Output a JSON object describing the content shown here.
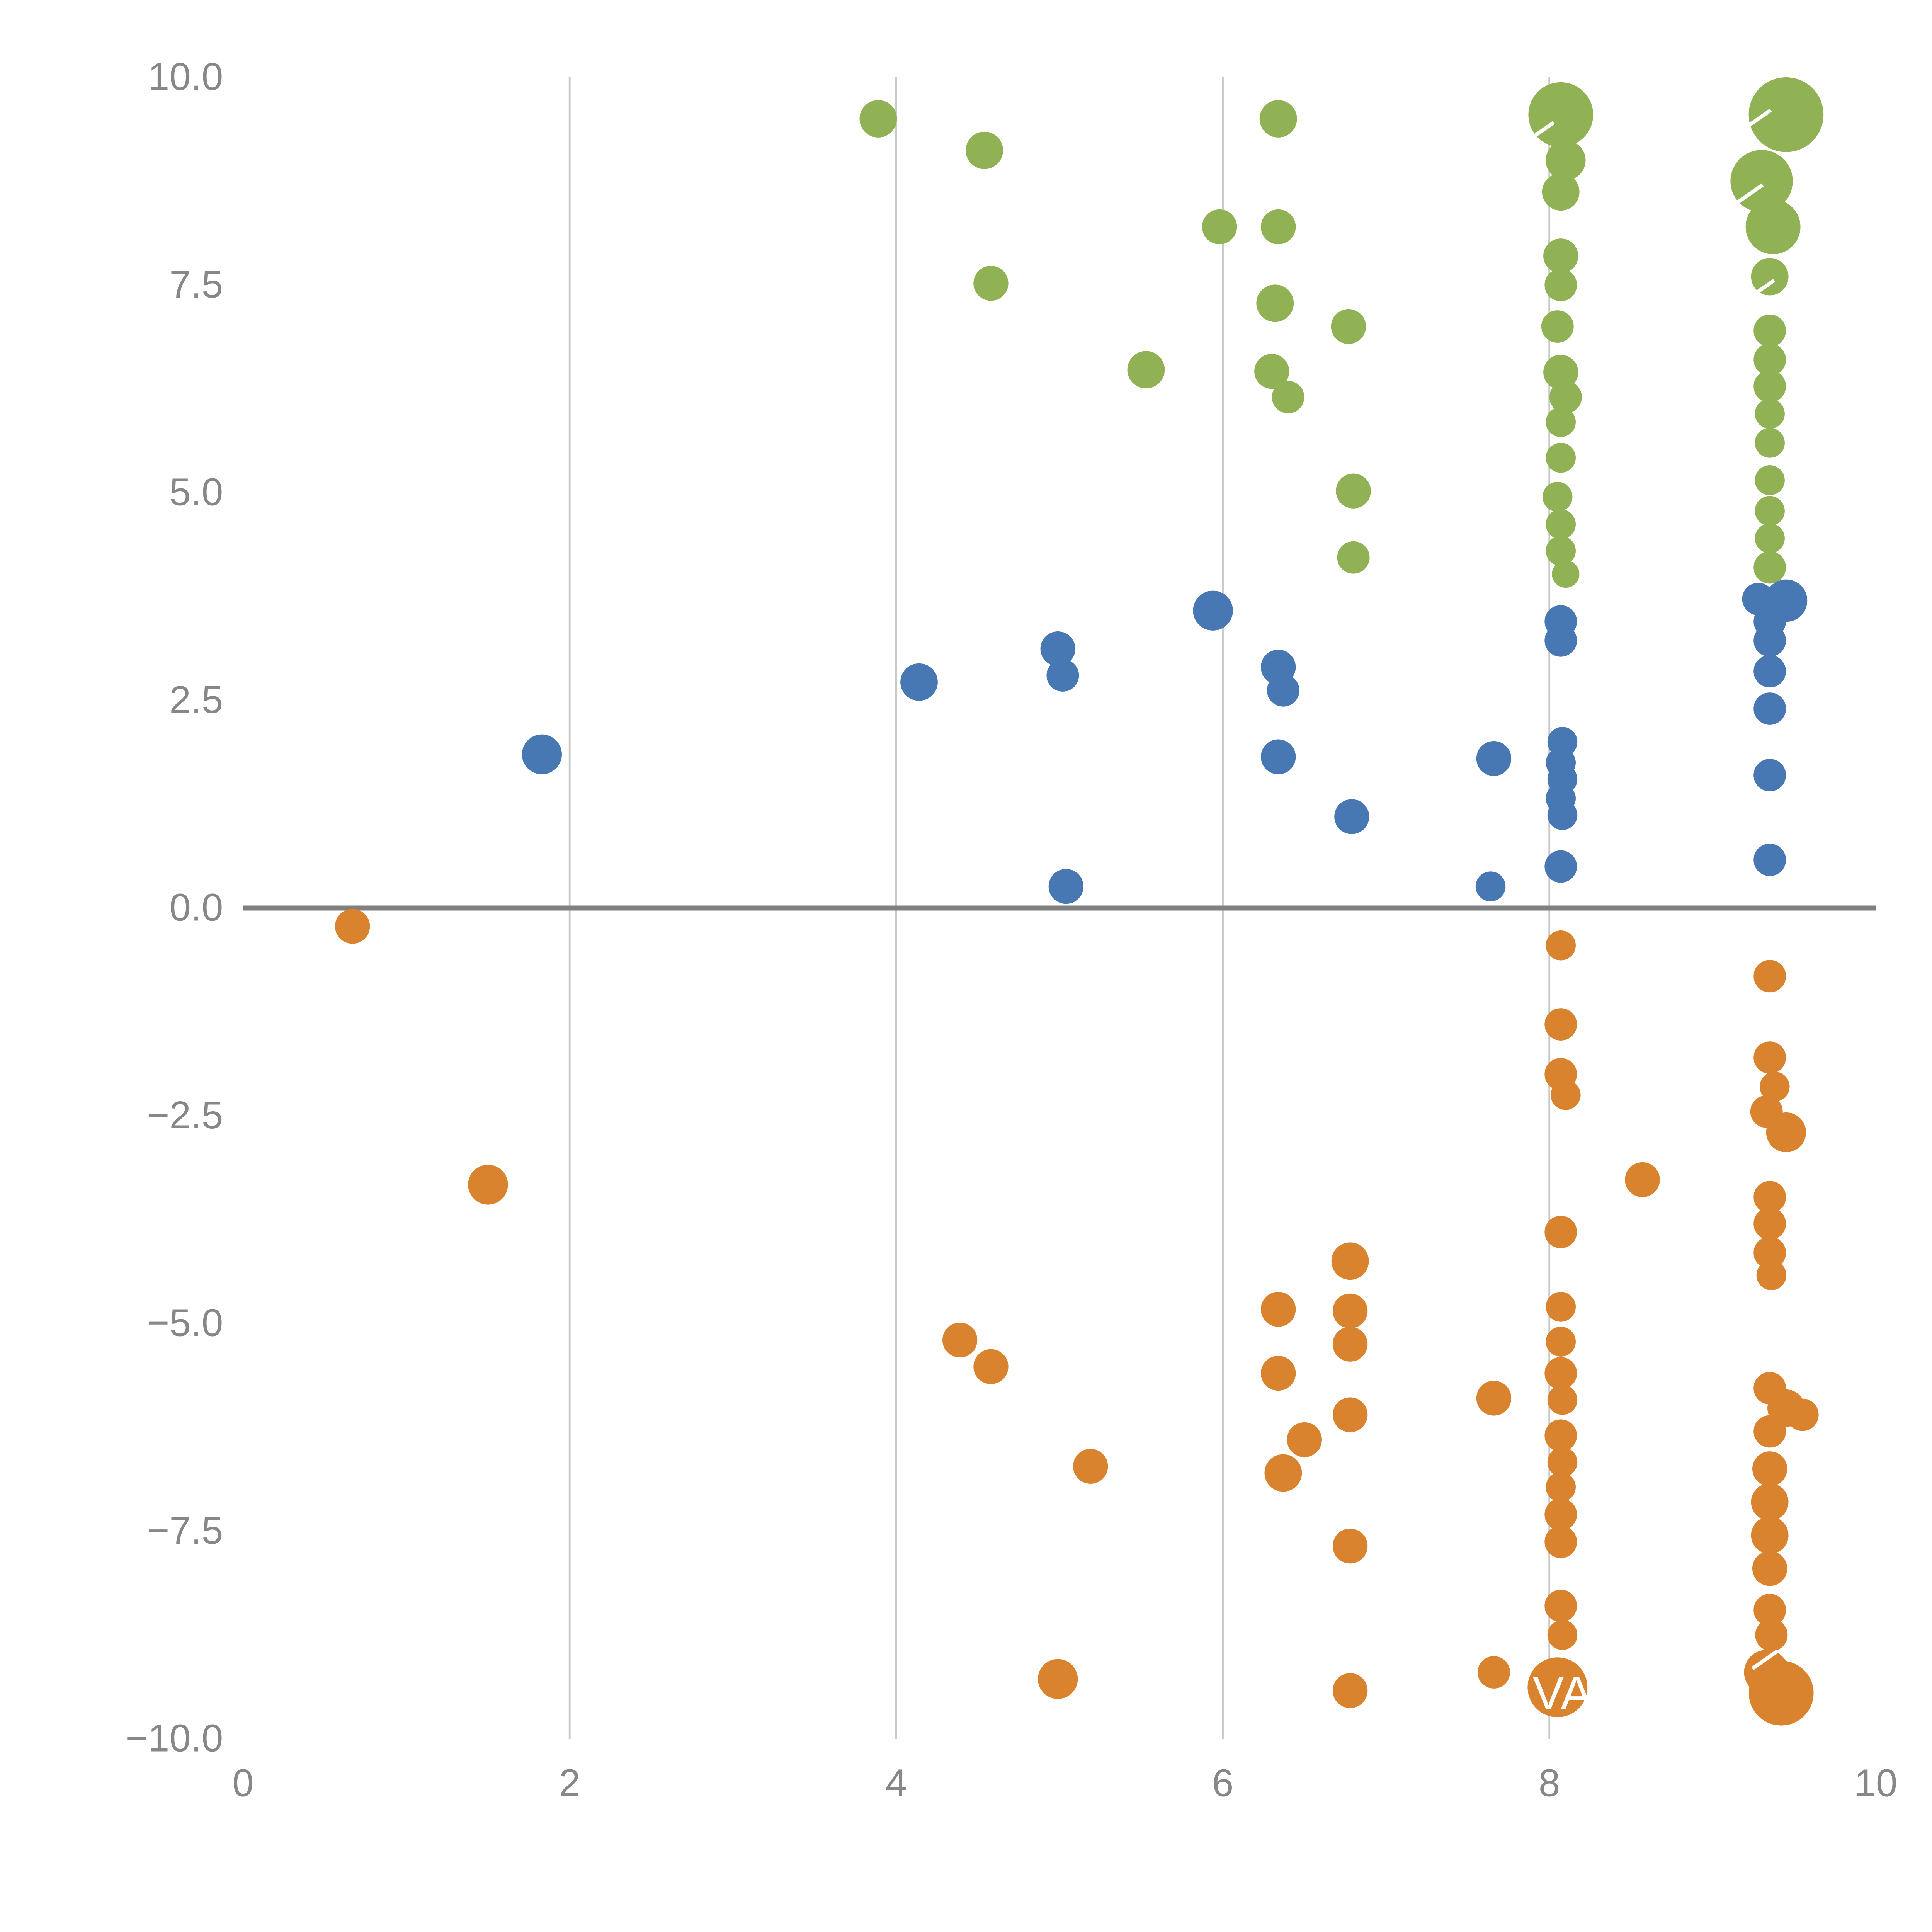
{
  "chart_data": {
    "type": "scatter",
    "title": "",
    "xlabel": "",
    "ylabel": "",
    "xlim": [
      0,
      10
    ],
    "ylim": [
      -10,
      10
    ],
    "grid": {
      "vertical_lines": [
        2,
        4,
        6,
        8
      ],
      "zero_line": true
    },
    "legend": "none",
    "colors": {
      "green": "#90B254",
      "blue": "#4878B4",
      "orange": "#D9832F",
      "grid": "#c9c9c9",
      "zero_line": "#808080",
      "tick_label": "#878787",
      "background": "#ffffff"
    },
    "x_ticks": [
      {
        "value": 0,
        "label": "0"
      },
      {
        "value": 2,
        "label": "2"
      },
      {
        "value": 4,
        "label": "4"
      },
      {
        "value": 6,
        "label": "6"
      },
      {
        "value": 8,
        "label": "8"
      },
      {
        "value": 10,
        "label": "10"
      }
    ],
    "y_ticks": [
      {
        "value": 10,
        "label": "10.0"
      },
      {
        "value": 7.5,
        "label": "7.5"
      },
      {
        "value": 5,
        "label": "5.0"
      },
      {
        "value": 2.5,
        "label": "2.5"
      },
      {
        "value": 0,
        "label": "0.0"
      },
      {
        "value": -2.5,
        "label": "−2.5"
      },
      {
        "value": -5,
        "label": "−5.0"
      },
      {
        "value": -7.5,
        "label": "−7.5"
      },
      {
        "value": -10,
        "label": "−10.0"
      }
    ],
    "point_format": [
      "x",
      "y",
      "r"
    ],
    "series": [
      {
        "name": "green-series",
        "color": "#90B254",
        "points": [
          [
            3.89,
            9.5,
            15
          ],
          [
            4.54,
            9.12,
            15
          ],
          [
            4.58,
            7.52,
            14
          ],
          [
            5.53,
            6.48,
            15
          ],
          [
            5.98,
            8.2,
            14
          ],
          [
            6.34,
            9.5,
            15
          ],
          [
            6.34,
            8.2,
            14
          ],
          [
            6.32,
            7.28,
            15
          ],
          [
            6.3,
            6.46,
            14
          ],
          [
            6.4,
            6.15,
            13
          ],
          [
            6.77,
            7.0,
            14
          ],
          [
            6.8,
            5.02,
            14
          ],
          [
            6.8,
            4.22,
            13
          ],
          [
            8.07,
            9.55,
            26
          ],
          [
            8.1,
            9.0,
            16
          ],
          [
            8.07,
            8.62,
            15
          ],
          [
            8.07,
            7.85,
            14
          ],
          [
            8.07,
            7.5,
            13
          ],
          [
            8.05,
            7.0,
            13
          ],
          [
            8.07,
            6.45,
            14
          ],
          [
            8.1,
            6.15,
            13
          ],
          [
            8.07,
            5.85,
            12
          ],
          [
            8.07,
            5.42,
            12
          ],
          [
            8.05,
            4.95,
            12
          ],
          [
            8.07,
            4.62,
            12
          ],
          [
            8.07,
            4.3,
            12
          ],
          [
            8.1,
            4.02,
            11
          ],
          [
            9.45,
            9.55,
            30
          ],
          [
            9.3,
            8.75,
            25
          ],
          [
            9.37,
            8.2,
            22
          ],
          [
            9.35,
            7.6,
            15
          ],
          [
            9.35,
            6.95,
            13
          ],
          [
            9.35,
            6.6,
            13
          ],
          [
            9.35,
            6.28,
            13
          ],
          [
            9.35,
            5.95,
            12
          ],
          [
            9.35,
            5.6,
            12
          ],
          [
            9.35,
            5.15,
            12
          ],
          [
            9.35,
            4.78,
            12
          ],
          [
            9.35,
            4.45,
            12
          ],
          [
            9.35,
            4.1,
            13
          ]
        ]
      },
      {
        "name": "blue-series",
        "color": "#4878B4",
        "points": [
          [
            1.83,
            1.85,
            16
          ],
          [
            4.14,
            2.72,
            15
          ],
          [
            4.99,
            3.12,
            14
          ],
          [
            5.02,
            2.8,
            13
          ],
          [
            5.04,
            0.26,
            14
          ],
          [
            5.94,
            3.58,
            16
          ],
          [
            6.34,
            2.9,
            14
          ],
          [
            6.37,
            2.62,
            13
          ],
          [
            6.34,
            1.82,
            14
          ],
          [
            6.79,
            1.1,
            14
          ],
          [
            7.66,
            1.8,
            14
          ],
          [
            7.64,
            0.26,
            12
          ],
          [
            8.07,
            3.45,
            13
          ],
          [
            8.07,
            3.22,
            13
          ],
          [
            8.08,
            2.0,
            12
          ],
          [
            8.07,
            1.75,
            12
          ],
          [
            8.08,
            1.55,
            12
          ],
          [
            8.07,
            1.32,
            12
          ],
          [
            8.08,
            1.12,
            12
          ],
          [
            8.07,
            0.5,
            13
          ],
          [
            9.45,
            3.7,
            17
          ],
          [
            9.28,
            3.72,
            13
          ],
          [
            9.35,
            3.45,
            13
          ],
          [
            9.35,
            3.22,
            13
          ],
          [
            9.35,
            2.85,
            13
          ],
          [
            9.35,
            2.4,
            13
          ],
          [
            9.35,
            1.6,
            13
          ],
          [
            9.35,
            0.58,
            13
          ]
        ]
      },
      {
        "name": "orange-series",
        "color": "#D9832F",
        "points": [
          [
            0.67,
            -0.22,
            14
          ],
          [
            1.5,
            -3.33,
            16
          ],
          [
            4.39,
            -5.2,
            14
          ],
          [
            4.58,
            -5.52,
            14
          ],
          [
            4.99,
            -9.28,
            16
          ],
          [
            5.19,
            -6.72,
            14
          ],
          [
            6.34,
            -4.83,
            14
          ],
          [
            6.34,
            -5.6,
            14
          ],
          [
            6.37,
            -6.8,
            15
          ],
          [
            6.5,
            -6.4,
            14
          ],
          [
            6.78,
            -4.25,
            15
          ],
          [
            6.78,
            -4.85,
            14
          ],
          [
            6.78,
            -5.25,
            14
          ],
          [
            6.78,
            -6.1,
            14
          ],
          [
            6.78,
            -7.68,
            14
          ],
          [
            6.78,
            -9.42,
            14
          ],
          [
            7.66,
            -5.9,
            14
          ],
          [
            7.66,
            -9.2,
            13
          ],
          [
            8.57,
            -3.27,
            14
          ],
          [
            8.07,
            -0.45,
            12
          ],
          [
            8.07,
            -1.4,
            13
          ],
          [
            8.07,
            -2.0,
            13
          ],
          [
            8.1,
            -2.25,
            12
          ],
          [
            8.07,
            -3.9,
            13
          ],
          [
            8.07,
            -4.8,
            12
          ],
          [
            8.07,
            -5.22,
            12
          ],
          [
            8.07,
            -5.6,
            13
          ],
          [
            8.08,
            -5.92,
            12
          ],
          [
            8.07,
            -6.35,
            13
          ],
          [
            8.08,
            -6.67,
            12
          ],
          [
            8.07,
            -6.97,
            12
          ],
          [
            8.07,
            -7.3,
            13
          ],
          [
            8.07,
            -7.63,
            13
          ],
          [
            8.07,
            -8.4,
            13
          ],
          [
            8.08,
            -8.75,
            12
          ],
          [
            8.05,
            -9.38,
            24
          ],
          [
            9.35,
            -0.82,
            13
          ],
          [
            9.35,
            -1.8,
            13
          ],
          [
            9.38,
            -2.15,
            12
          ],
          [
            9.33,
            -2.45,
            13
          ],
          [
            9.45,
            -2.7,
            16
          ],
          [
            9.35,
            -3.48,
            13
          ],
          [
            9.35,
            -3.8,
            13
          ],
          [
            9.35,
            -4.15,
            13
          ],
          [
            9.36,
            -4.42,
            12
          ],
          [
            9.35,
            -5.78,
            13
          ],
          [
            9.45,
            -6.02,
            15
          ],
          [
            9.55,
            -6.1,
            13
          ],
          [
            9.35,
            -6.3,
            13
          ],
          [
            9.35,
            -6.75,
            14
          ],
          [
            9.35,
            -7.15,
            15
          ],
          [
            9.35,
            -7.55,
            15
          ],
          [
            9.35,
            -7.95,
            14
          ],
          [
            9.35,
            -8.45,
            13
          ],
          [
            9.36,
            -8.75,
            13
          ],
          [
            9.33,
            -9.2,
            18
          ],
          [
            9.42,
            -9.45,
            26
          ]
        ]
      }
    ],
    "annotations": [
      {
        "text": "VA",
        "x": 8.08,
        "y": -9.45,
        "color": "#ffffff"
      }
    ],
    "white_marks": [
      {
        "x": 7.95,
        "y": 9.35
      },
      {
        "x": 9.28,
        "y": 9.5
      },
      {
        "x": 9.23,
        "y": 8.6
      },
      {
        "x": 9.3,
        "y": 7.45
      },
      {
        "x": 9.32,
        "y": -9.05
      }
    ]
  }
}
